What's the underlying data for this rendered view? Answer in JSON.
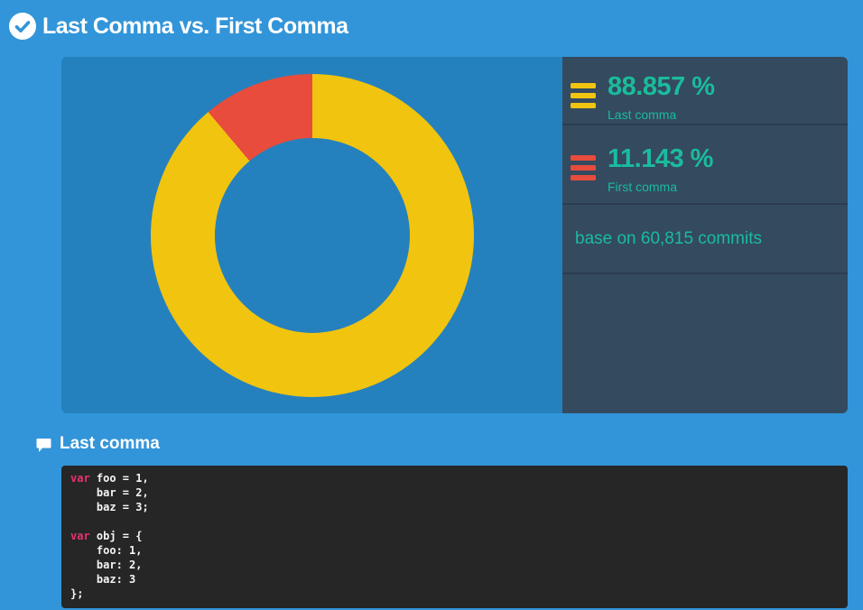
{
  "header": {
    "title": "Last Comma vs. First Comma"
  },
  "colors": {
    "page_bg": "#3295d9",
    "chart_area_bg": "#2581bd",
    "stats_panel_bg": "#344a5f",
    "divider": "#2c3d51",
    "teal_text": "#1abc9c",
    "yellow": "#f1c40f",
    "red": "#e74c3c",
    "code_bg": "#262626",
    "code_text": "#f5f5f5",
    "code_keyword": "#e8336d"
  },
  "chart_data": {
    "type": "pie",
    "subtype": "donut",
    "title": "Last Comma vs. First Comma",
    "categories": [
      "Last comma",
      "First comma"
    ],
    "values": [
      88.857,
      11.143
    ],
    "colors": [
      "#f1c40f",
      "#e74c3c"
    ],
    "start_angle_deg": 0,
    "direction": "clockwise",
    "annotation": "base on 60,815 commits",
    "legend_position": "right"
  },
  "panel": {
    "stats": [
      {
        "icon": "bars-icon",
        "icon_color": "#f1c40f",
        "value": "88.857 %",
        "label": "Last comma"
      },
      {
        "icon": "bars-icon",
        "icon_color": "#e74c3c",
        "value": "11.143 %",
        "label": "First comma"
      }
    ],
    "base_note": "base on 60,815 commits"
  },
  "code_section": {
    "icon": "speech-bubble-icon",
    "title": "Last comma",
    "lines": [
      [
        {
          "t": "var",
          "k": true
        },
        {
          "t": " foo = 1,"
        }
      ],
      [
        {
          "t": "    bar = 2,"
        }
      ],
      [
        {
          "t": "    baz = 3;"
        }
      ],
      [],
      [
        {
          "t": "var",
          "k": true
        },
        {
          "t": " obj = {"
        }
      ],
      [
        {
          "t": "    foo: 1,"
        }
      ],
      [
        {
          "t": "    bar: 2,"
        }
      ],
      [
        {
          "t": "    baz: 3"
        }
      ],
      [
        {
          "t": "};"
        }
      ]
    ]
  }
}
